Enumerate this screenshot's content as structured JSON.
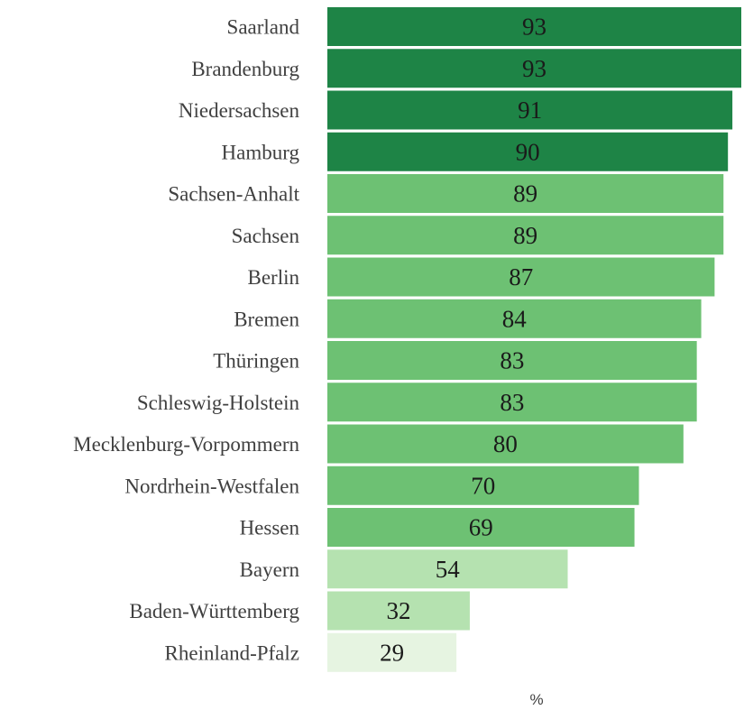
{
  "chart_data": {
    "type": "bar",
    "orientation": "horizontal",
    "categories": [
      "Saarland",
      "Brandenburg",
      "Niedersachsen",
      "Hamburg",
      "Sachsen-Anhalt",
      "Sachsen",
      "Berlin",
      "Bremen",
      "Thüringen",
      "Schleswig-Holstein",
      "Mecklenburg-Vorpommern",
      "Nordrhein-Westfalen",
      "Hessen",
      "Bayern",
      "Baden-Württemberg",
      "Rheinland-Pfalz"
    ],
    "values": [
      93,
      93,
      91,
      90,
      89,
      89,
      87,
      84,
      83,
      83,
      80,
      70,
      69,
      54,
      32,
      29
    ],
    "bar_colors": [
      "#1e8446",
      "#1e8446",
      "#1e8446",
      "#1e8446",
      "#6dc173",
      "#6dc173",
      "#6dc173",
      "#6dc173",
      "#6dc173",
      "#6dc173",
      "#6dc173",
      "#6dc173",
      "#6dc173",
      "#b5e2b0",
      "#b5e2b0",
      "#e6f4e1"
    ],
    "xlabel": "%",
    "ylabel": "",
    "title": "",
    "xlim": [
      0,
      93
    ],
    "grid": false,
    "legend": "none",
    "data_labels": true
  }
}
